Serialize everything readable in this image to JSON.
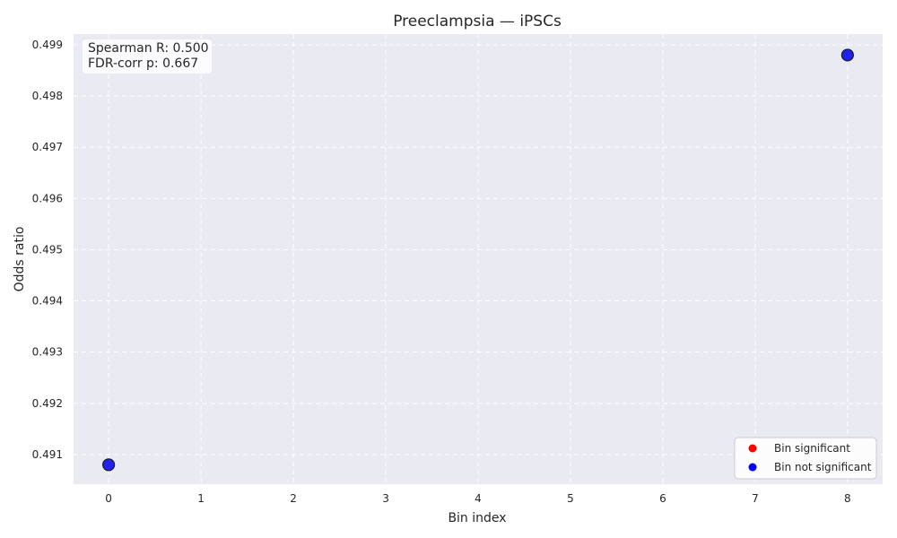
{
  "chart_data": {
    "type": "scatter",
    "title": "Preeclampsia — iPSCs",
    "xlabel": "Bin index",
    "ylabel": "Odds ratio",
    "xlim": [
      -0.38,
      8.38
    ],
    "ylim": [
      0.49042,
      0.49921
    ],
    "xticks": [
      0,
      1,
      2,
      3,
      4,
      5,
      6,
      7,
      8
    ],
    "yticks": [
      0.491,
      0.492,
      0.493,
      0.494,
      0.495,
      0.496,
      0.497,
      0.498,
      0.499
    ],
    "grid": true,
    "points": [
      {
        "x": 0,
        "y": 0.4908,
        "significant": false
      },
      {
        "x": 8,
        "y": 0.4988,
        "significant": false
      }
    ],
    "annotation": [
      "Spearman R: 0.500",
      "FDR-corr p: 0.667"
    ],
    "legend": {
      "position": "bottom-right",
      "entries": [
        {
          "label": "Bin significant",
          "color": "#ff0000"
        },
        {
          "label": "Bin not significant",
          "color": "#0000ff"
        }
      ]
    },
    "colors": {
      "plot_background": "#eaeaf2",
      "grid": "#ffffff",
      "point_fill": "#2222ee",
      "point_edge": "#1a1a1a"
    }
  }
}
